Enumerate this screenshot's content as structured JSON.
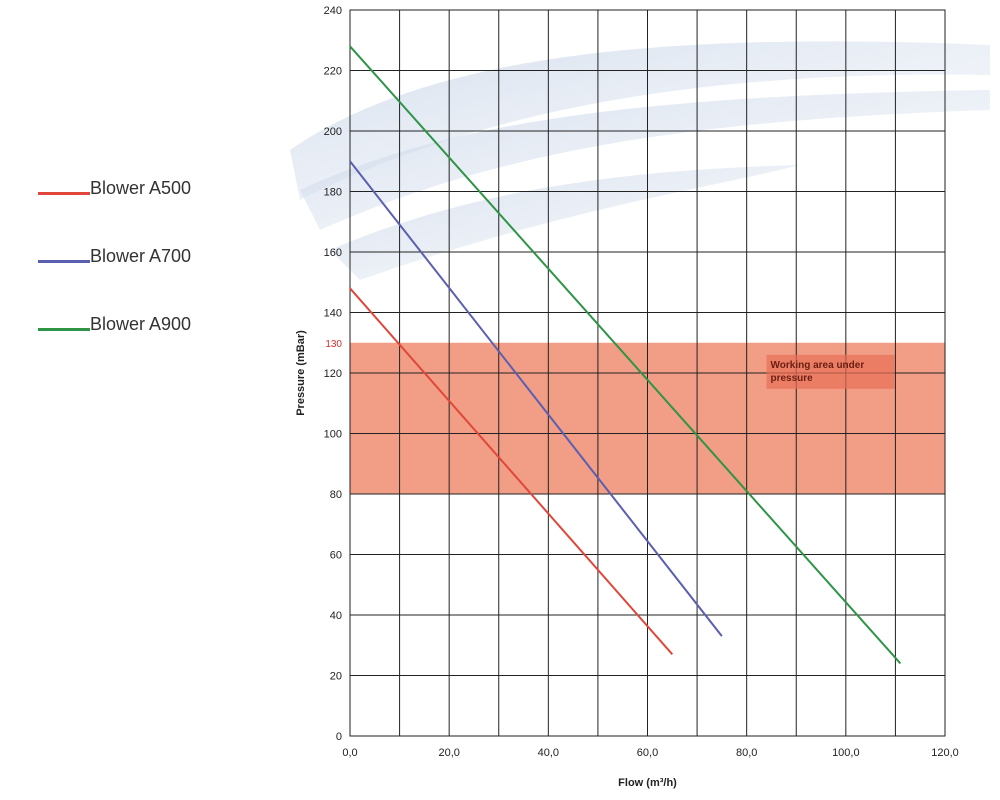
{
  "legend": {
    "items": [
      {
        "label": "Blower A500",
        "color": "#e0473a"
      },
      {
        "label": "Blower A700",
        "color": "#5a5fb0"
      },
      {
        "label": "Blower A900",
        "color": "#2e9446"
      }
    ]
  },
  "chart_data": {
    "type": "line",
    "xlabel": "Flow (m³/h)",
    "ylabel": "Pressure (mBar)",
    "xlim": [
      0,
      120
    ],
    "ylim": [
      0,
      240
    ],
    "x_ticks": [
      0,
      20,
      40,
      60,
      80,
      100,
      120
    ],
    "x_tick_labels": [
      "0,0",
      "20,0",
      "40,0",
      "60,0",
      "80,0",
      "100,0",
      "120,0"
    ],
    "x_grid_step": 10,
    "y_ticks": [
      0,
      20,
      40,
      60,
      80,
      100,
      120,
      140,
      160,
      180,
      200,
      220,
      240
    ],
    "grid": true,
    "series": [
      {
        "name": "Blower A500",
        "color": "#e0473a",
        "x": [
          0,
          65
        ],
        "y": [
          148,
          27
        ]
      },
      {
        "name": "Blower A700",
        "color": "#5a5fb0",
        "x": [
          0,
          75
        ],
        "y": [
          190,
          33
        ]
      },
      {
        "name": "Blower A900",
        "color": "#2e9446",
        "x": [
          0,
          111
        ],
        "y": [
          228,
          24
        ]
      }
    ],
    "working_area": {
      "y_min": 80,
      "y_max": 130,
      "color": "#f08c70",
      "label": "Working area under pressure"
    },
    "annotations": [
      {
        "text": "130",
        "y": 130,
        "color": "#d32f2f"
      }
    ]
  }
}
